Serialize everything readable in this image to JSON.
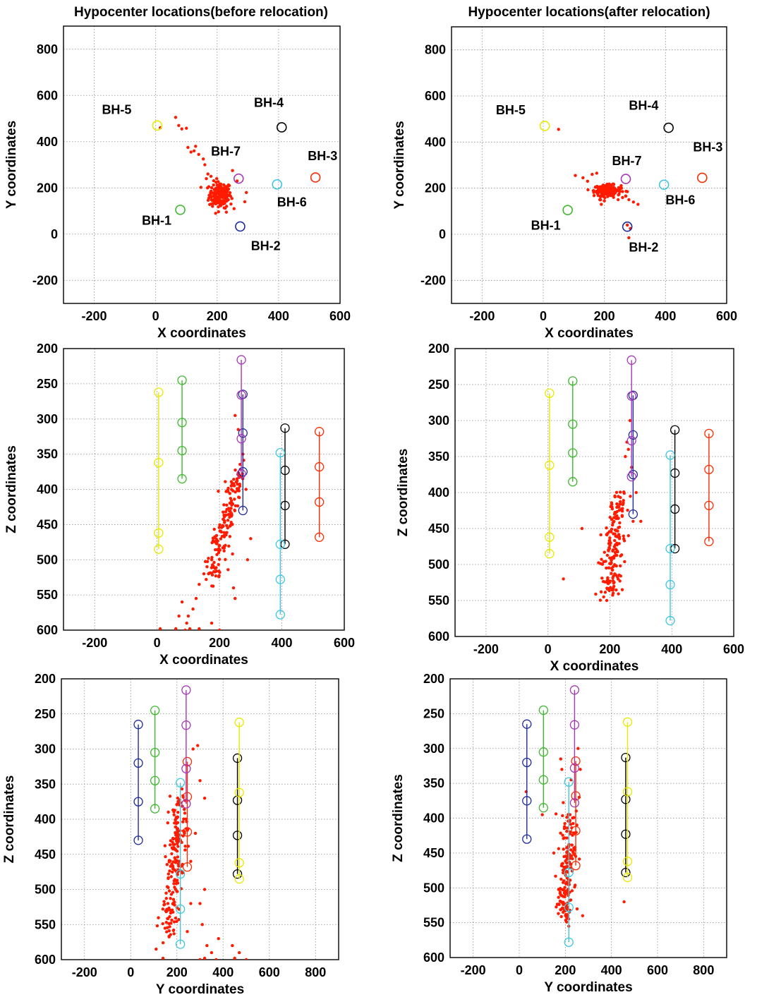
{
  "figure": {
    "title_left": "Hypocenter locations(before relocation)",
    "title_right": "Hypocenter locations(after relocation)"
  },
  "colors": {
    "events": "#ff1a00",
    "BH-1": "#3cb92c",
    "BH-2": "#1f2a9e",
    "BH-3": "#ff2a00",
    "BH-4": "#000000",
    "BH-5": "#e8e800",
    "BH-6": "#3fc7e0",
    "BH-7": "#a637b5"
  },
  "boreholes": [
    {
      "name": "BH-1",
      "x": 80,
      "y": 105,
      "z_top": 245,
      "z_bottom": 385,
      "sensors_z": [
        245,
        305,
        345,
        385
      ]
    },
    {
      "name": "BH-2",
      "x": 275,
      "y": 33,
      "z_top": 265,
      "z_bottom": 430,
      "sensors_z": [
        265,
        320,
        375,
        430
      ]
    },
    {
      "name": "BH-3",
      "x": 520,
      "y": 245,
      "z_top": 318,
      "z_bottom": 468,
      "sensors_z": [
        318,
        368,
        418,
        468
      ]
    },
    {
      "name": "BH-4",
      "x": 410,
      "y": 462,
      "z_top": 313,
      "z_bottom": 478,
      "sensors_z": [
        313,
        373,
        423,
        478
      ]
    },
    {
      "name": "BH-5",
      "x": 5,
      "y": 470,
      "z_top": 262,
      "z_bottom": 485,
      "sensors_z": [
        262,
        362,
        462,
        485
      ]
    },
    {
      "name": "BH-6",
      "x": 395,
      "y": 215,
      "z_top": 348,
      "z_bottom": 578,
      "sensors_z": [
        348,
        478,
        528,
        578
      ]
    },
    {
      "name": "BH-7",
      "x": 270,
      "y": 240,
      "z_top": 216,
      "z_bottom": 378,
      "sensors_z": [
        216,
        266,
        328,
        378
      ]
    }
  ],
  "chart_data": [
    {
      "id": "xy_before",
      "type": "scatter",
      "title": "Hypocenter locations(before relocation)",
      "xlabel": "X coordinates",
      "ylabel": "Y coordinates",
      "xlim": [
        -300,
        600
      ],
      "ylim": [
        -300,
        900
      ],
      "xticks": [
        -200,
        0,
        200,
        400,
        600
      ],
      "yticks": [
        -200,
        0,
        200,
        400,
        600,
        800
      ],
      "grid": true,
      "events_cluster": {
        "center_x": 210,
        "center_y": 170,
        "sd_x": 18,
        "sd_y": 28,
        "count": 180
      },
      "events_extra": [
        [
          65,
          505
        ],
        [
          75,
          470
        ],
        [
          85,
          455
        ],
        [
          100,
          458
        ],
        [
          105,
          375
        ],
        [
          115,
          355
        ],
        [
          125,
          360
        ],
        [
          130,
          380
        ],
        [
          140,
          345
        ],
        [
          155,
          325
        ],
        [
          160,
          300
        ],
        [
          165,
          240
        ],
        [
          170,
          260
        ],
        [
          180,
          250
        ],
        [
          250,
          275
        ],
        [
          265,
          230
        ],
        [
          290,
          140
        ],
        [
          295,
          180
        ],
        [
          245,
          130
        ],
        [
          255,
          110
        ],
        [
          15,
          460
        ],
        [
          185,
          120
        ],
        [
          195,
          90
        ],
        [
          230,
          95
        ]
      ],
      "bh_labels": {
        "BH-1": [
          -45,
          40
        ],
        "BH-2": [
          310,
          -70
        ],
        "BH-3": [
          495,
          320
        ],
        "BH-4": [
          320,
          550
        ],
        "BH-5": [
          -175,
          520
        ],
        "BH-6": [
          395,
          120
        ],
        "BH-7": [
          180,
          340
        ]
      }
    },
    {
      "id": "xy_after",
      "type": "scatter",
      "title": "Hypocenter locations(after relocation)",
      "xlabel": "X coordinates",
      "ylabel": "Y coordinates",
      "xlim": [
        -300,
        600
      ],
      "ylim": [
        -300,
        900
      ],
      "xticks": [
        -200,
        0,
        200,
        400,
        600
      ],
      "yticks": [
        -200,
        0,
        200,
        400,
        600,
        800
      ],
      "grid": true,
      "events_cluster": {
        "center_x": 210,
        "center_y": 190,
        "sd_x": 22,
        "sd_y": 12,
        "count": 180
      },
      "events_extra": [
        [
          50,
          455
        ],
        [
          105,
          255
        ],
        [
          130,
          245
        ],
        [
          145,
          230
        ],
        [
          160,
          260
        ],
        [
          175,
          265
        ],
        [
          230,
          160
        ],
        [
          245,
          150
        ],
        [
          270,
          165
        ],
        [
          280,
          150
        ],
        [
          295,
          140
        ],
        [
          310,
          130
        ],
        [
          275,
          40
        ],
        [
          285,
          25
        ],
        [
          280,
          -15
        ],
        [
          190,
          130
        ],
        [
          200,
          145
        ],
        [
          255,
          200
        ],
        [
          275,
          185
        ],
        [
          185,
          150
        ]
      ],
      "bh_labels": {
        "BH-1": [
          -40,
          20
        ],
        "BH-2": [
          280,
          -75
        ],
        "BH-3": [
          490,
          360
        ],
        "BH-4": [
          280,
          540
        ],
        "BH-5": [
          -155,
          520
        ],
        "BH-6": [
          400,
          130
        ],
        "BH-7": [
          225,
          300
        ]
      }
    },
    {
      "id": "xz_before",
      "type": "scatter",
      "xlabel": "X coordinates",
      "ylabel": "Z coordinates",
      "xlim": [
        -300,
        600
      ],
      "ylim": [
        200,
        600
      ],
      "y_reversed": true,
      "xticks": [
        -200,
        0,
        200,
        400,
        600
      ],
      "yticks": [
        200,
        250,
        300,
        350,
        400,
        450,
        500,
        550,
        600
      ],
      "grid": true,
      "events_trend": {
        "x_at_top": 262,
        "z_top": 375,
        "x_at_bottom": 175,
        "z_bottom": 520,
        "sd_x": 14,
        "count": 170
      },
      "events_extra": [
        [
          250,
          295
        ],
        [
          260,
          315
        ],
        [
          275,
          350
        ],
        [
          285,
          400
        ],
        [
          300,
          470
        ],
        [
          290,
          500
        ],
        [
          175,
          500
        ],
        [
          160,
          510
        ],
        [
          150,
          520
        ],
        [
          135,
          535
        ],
        [
          125,
          555
        ],
        [
          115,
          570
        ],
        [
          100,
          580
        ],
        [
          95,
          590
        ],
        [
          80,
          560
        ],
        [
          70,
          580
        ],
        [
          60,
          598
        ],
        [
          10,
          598
        ],
        [
          200,
          600
        ],
        [
          175,
          590
        ],
        [
          135,
          598
        ],
        [
          105,
          598
        ],
        [
          90,
          600
        ],
        [
          250,
          555
        ],
        [
          245,
          540
        ]
      ]
    },
    {
      "id": "xz_after",
      "type": "scatter",
      "xlabel": "X coordinates",
      "ylabel": "Z coordinates",
      "xlim": [
        -300,
        600
      ],
      "ylim": [
        200,
        600
      ],
      "y_reversed": true,
      "xticks": [
        -200,
        0,
        200,
        400,
        600
      ],
      "yticks": [
        200,
        250,
        300,
        350,
        400,
        450,
        500,
        550,
        600
      ],
      "grid": true,
      "events_trend": {
        "x_at_top": 230,
        "z_top": 400,
        "x_at_bottom": 200,
        "z_bottom": 535,
        "sd_x": 16,
        "count": 170
      },
      "events_extra": [
        [
          50,
          520
        ],
        [
          110,
          450
        ],
        [
          265,
          300
        ],
        [
          260,
          340
        ],
        [
          270,
          365
        ],
        [
          285,
          400
        ],
        [
          300,
          440
        ],
        [
          250,
          350
        ],
        [
          255,
          330
        ],
        [
          190,
          550
        ],
        [
          180,
          545
        ],
        [
          240,
          535
        ],
        [
          260,
          460
        ],
        [
          275,
          440
        ]
      ]
    },
    {
      "id": "yz_before",
      "type": "scatter",
      "xlabel": "Y coordinates",
      "ylabel": "Z coordinates",
      "xlim": [
        -300,
        900
      ],
      "ylim": [
        200,
        600
      ],
      "y_reversed": true,
      "xticks": [
        -200,
        0,
        200,
        400,
        600,
        800
      ],
      "yticks": [
        200,
        250,
        300,
        350,
        400,
        450,
        500,
        550,
        600
      ],
      "grid": true,
      "events_trend": {
        "x_at_top": 215,
        "z_top": 370,
        "x_at_bottom": 165,
        "z_bottom": 560,
        "sd_x": 22,
        "count": 200
      },
      "events_extra": [
        [
          270,
          300
        ],
        [
          290,
          295
        ],
        [
          300,
          345
        ],
        [
          320,
          370
        ],
        [
          280,
          420
        ],
        [
          260,
          460
        ],
        [
          320,
          500
        ],
        [
          300,
          520
        ],
        [
          310,
          550
        ],
        [
          330,
          580
        ],
        [
          350,
          590
        ],
        [
          380,
          570
        ],
        [
          440,
          580
        ],
        [
          450,
          598
        ],
        [
          470,
          590
        ],
        [
          370,
          600
        ],
        [
          320,
          598
        ],
        [
          300,
          600
        ],
        [
          110,
          585
        ],
        [
          140,
          598
        ],
        [
          500,
          600
        ],
        [
          245,
          560
        ],
        [
          260,
          520
        ]
      ]
    },
    {
      "id": "yz_after",
      "type": "scatter",
      "xlabel": "Y coordinates",
      "ylabel": "Z coordinates",
      "xlim": [
        -300,
        900
      ],
      "ylim": [
        200,
        600
      ],
      "y_reversed": true,
      "xticks": [
        -200,
        0,
        200,
        400,
        600,
        800
      ],
      "yticks": [
        200,
        250,
        300,
        350,
        400,
        450,
        500,
        550,
        600
      ],
      "grid": true,
      "events_trend": {
        "x_at_top": 220,
        "z_top": 400,
        "x_at_bottom": 195,
        "z_bottom": 540,
        "sd_x": 16,
        "count": 170
      },
      "events_extra": [
        [
          30,
          362
        ],
        [
          100,
          395
        ],
        [
          180,
          315
        ],
        [
          185,
          330
        ],
        [
          225,
          345
        ],
        [
          255,
          300
        ],
        [
          265,
          330
        ],
        [
          260,
          370
        ],
        [
          250,
          410
        ],
        [
          275,
          540
        ],
        [
          215,
          555
        ],
        [
          235,
          450
        ],
        [
          150,
          450
        ],
        [
          180,
          510
        ],
        [
          455,
          520
        ]
      ]
    }
  ]
}
